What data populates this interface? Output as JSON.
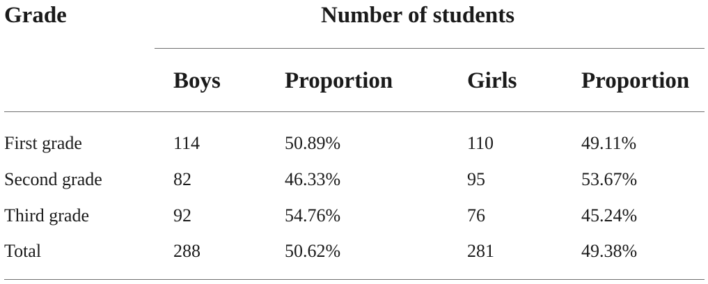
{
  "table": {
    "header": {
      "grade": "Grade",
      "group": "Number of students",
      "columns": [
        "Boys",
        "Proportion",
        "Girls",
        "Proportion"
      ]
    },
    "rows": [
      {
        "grade": "First grade",
        "boys": "114",
        "boys_prop": "50.89%",
        "girls": "110",
        "girls_prop": "49.11%"
      },
      {
        "grade": "Second grade",
        "boys": "82",
        "boys_prop": "46.33%",
        "girls": "95",
        "girls_prop": "53.67%"
      },
      {
        "grade": "Third grade",
        "boys": "92",
        "boys_prop": "54.76%",
        "girls": "76",
        "girls_prop": "45.24%"
      },
      {
        "grade": "Total",
        "boys": "288",
        "boys_prop": "50.62%",
        "girls": "281",
        "girls_prop": "49.38%"
      }
    ]
  }
}
